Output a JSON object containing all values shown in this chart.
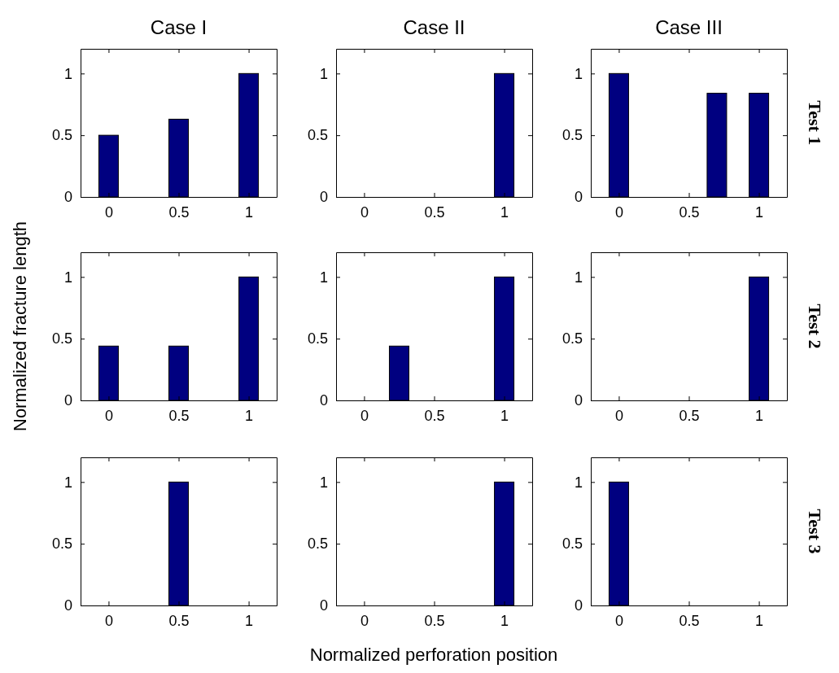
{
  "chart_data": [
    {
      "type": "bar",
      "title": "Case I",
      "x": [
        0,
        0.5,
        1
      ],
      "values": [
        0.5,
        0.63,
        1
      ],
      "color": "#000080",
      "xlim": [
        -0.2,
        1.2
      ],
      "ylim": [
        0,
        1.2
      ],
      "xticks": [
        0,
        0.5,
        1
      ],
      "yticks": [
        0,
        0.5,
        1
      ]
    },
    {
      "type": "bar",
      "title": "Case II",
      "x": [
        0,
        0.25,
        0.5,
        1
      ],
      "values": [
        0,
        0,
        0,
        1
      ],
      "color": "#000080",
      "xlim": [
        -0.2,
        1.2
      ],
      "ylim": [
        0,
        1.2
      ],
      "xticks": [
        0,
        0.5,
        1
      ],
      "yticks": [
        0,
        0.5,
        1
      ]
    },
    {
      "type": "bar",
      "title": "Case III",
      "x": [
        0,
        0.5,
        0.7,
        1
      ],
      "values": [
        1,
        0,
        0.84,
        0.84
      ],
      "color": "#000080",
      "xlim": [
        -0.2,
        1.2
      ],
      "ylim": [
        0,
        1.2
      ],
      "xticks": [
        0,
        0.5,
        1
      ],
      "yticks": [
        0,
        0.5,
        1
      ],
      "annotations": [
        "Test 1"
      ]
    },
    {
      "type": "bar",
      "ylabel": "Normalized fracture length",
      "x": [
        0,
        0.5,
        1
      ],
      "values": [
        0.44,
        0.44,
        1
      ],
      "color": "#000080",
      "xlim": [
        -0.2,
        1.2
      ],
      "ylim": [
        0,
        1.2
      ],
      "xticks": [
        0,
        0.5,
        1
      ],
      "yticks": [
        0,
        0.5,
        1
      ]
    },
    {
      "type": "bar",
      "x": [
        0,
        0.25,
        0.5,
        1
      ],
      "values": [
        0,
        0.44,
        0,
        1
      ],
      "color": "#000080",
      "xlim": [
        -0.2,
        1.2
      ],
      "ylim": [
        0,
        1.2
      ],
      "xticks": [
        0,
        0.5,
        1
      ],
      "yticks": [
        0,
        0.5,
        1
      ]
    },
    {
      "type": "bar",
      "x": [
        0,
        0.5,
        0.7,
        1
      ],
      "values": [
        0,
        0,
        0,
        1
      ],
      "color": "#000080",
      "xlim": [
        -0.2,
        1.2
      ],
      "ylim": [
        0,
        1.2
      ],
      "xticks": [
        0,
        0.5,
        1
      ],
      "yticks": [
        0,
        0.5,
        1
      ],
      "annotations": [
        "Test 2"
      ]
    },
    {
      "type": "bar",
      "x": [
        0,
        0.5,
        1
      ],
      "values": [
        0,
        1,
        0
      ],
      "color": "#000080",
      "xlim": [
        -0.2,
        1.2
      ],
      "ylim": [
        0,
        1.2
      ],
      "xticks": [
        0,
        0.5,
        1
      ],
      "yticks": [
        0,
        0.5,
        1
      ]
    },
    {
      "type": "bar",
      "xlabel": "Normalized perforation position",
      "x": [
        0,
        0.25,
        0.5,
        1
      ],
      "values": [
        0,
        0,
        0,
        1
      ],
      "color": "#000080",
      "xlim": [
        -0.2,
        1.2
      ],
      "ylim": [
        0,
        1.2
      ],
      "xticks": [
        0,
        0.5,
        1
      ],
      "yticks": [
        0,
        0.5,
        1
      ]
    },
    {
      "type": "bar",
      "x": [
        0,
        0.5,
        0.7,
        1
      ],
      "values": [
        1,
        0,
        0,
        0
      ],
      "color": "#000080",
      "xlim": [
        -0.2,
        1.2
      ],
      "ylim": [
        0,
        1.2
      ],
      "xticks": [
        0,
        0.5,
        1
      ],
      "yticks": [
        0,
        0.5,
        1
      ],
      "annotations": [
        "Test 3"
      ]
    }
  ]
}
